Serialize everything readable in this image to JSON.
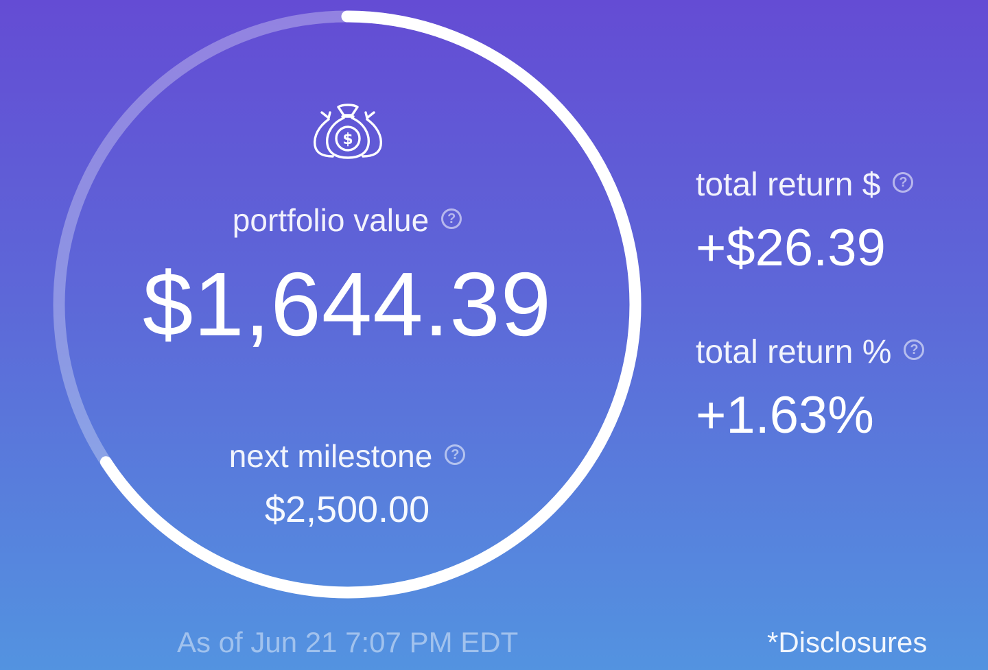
{
  "portfolio": {
    "label": "portfolio value",
    "value": "$1,644.39",
    "icon": "money-bags-icon"
  },
  "milestone": {
    "label": "next milestone",
    "value": "$2,500.00",
    "progress": 0.6578
  },
  "returns": {
    "dollar_label": "total return $",
    "dollar_value": "+$26.39",
    "percent_label": "total return %",
    "percent_value": "+1.63%"
  },
  "help_glyph": "?",
  "footer": {
    "as_of": "As of Jun 21  7:07 PM EDT",
    "disclosures": "*Disclosures"
  },
  "colors": {
    "gradient_top": "#644cd4",
    "gradient_bottom": "#5393e0",
    "progress_ring": "#ffffff",
    "track_ring": "rgba(255,255,255,0.3)"
  }
}
